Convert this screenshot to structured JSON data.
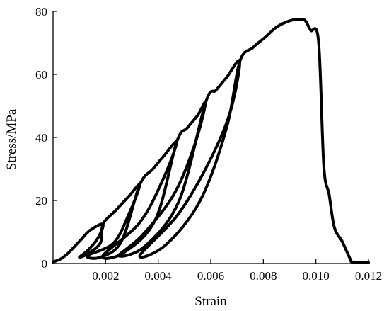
{
  "chart_data": {
    "type": "line",
    "title": "",
    "xlabel": "Strain",
    "ylabel": "Stress/MPa",
    "xlim": [
      0,
      0.012
    ],
    "ylim": [
      0,
      80
    ],
    "x_ticks": [
      0.002,
      0.004,
      0.006,
      0.008,
      0.01,
      0.012
    ],
    "x_tick_labels": [
      "0.002",
      "0.004",
      "0.006",
      "0.008",
      "0.010",
      "0.012"
    ],
    "y_ticks": [
      0,
      20,
      40,
      60,
      80
    ],
    "y_tick_labels": [
      "0",
      "20",
      "40",
      "60",
      "80"
    ],
    "grid": false,
    "legend": "none",
    "series": [
      {
        "values": [
          [
            0,
            0.5
          ],
          [
            0.0003,
            1.5
          ],
          [
            0.0006,
            3.5
          ],
          [
            0.001,
            7
          ],
          [
            0.0014,
            10.5
          ],
          [
            0.0019,
            12.5
          ],
          [
            0.0017,
            8
          ],
          [
            0.0013,
            4
          ],
          [
            0.001,
            2
          ],
          [
            0.0013,
            3
          ],
          [
            0.0018,
            6.5
          ],
          [
            0.0019,
            12.5
          ],
          [
            0.0024,
            17
          ],
          [
            0.0029,
            21.5
          ],
          [
            0.0033,
            25
          ],
          [
            0.0029,
            16
          ],
          [
            0.0023,
            6.5
          ],
          [
            0.0013,
            2.5
          ],
          [
            0.0018,
            2
          ],
          [
            0.0026,
            7
          ],
          [
            0.0033,
            25
          ],
          [
            0.0038,
            30
          ],
          [
            0.0042,
            34
          ],
          [
            0.0047,
            38.5
          ],
          [
            0.0042,
            27
          ],
          [
            0.0033,
            13
          ],
          [
            0.0019,
            2.5
          ],
          [
            0.0027,
            3.5
          ],
          [
            0.0039,
            14
          ],
          [
            0.0047,
            38.5
          ],
          [
            0.0051,
            43
          ],
          [
            0.0055,
            47
          ],
          [
            0.0058,
            51
          ],
          [
            0.0054,
            38
          ],
          [
            0.0046,
            22
          ],
          [
            0.0034,
            9
          ],
          [
            0.0025,
            2.5
          ],
          [
            0.0035,
            5.5
          ],
          [
            0.0048,
            20
          ],
          [
            0.0058,
            51
          ],
          [
            0.0062,
            55
          ],
          [
            0.0066,
            59
          ],
          [
            0.0071,
            64
          ],
          [
            0.0067,
            47
          ],
          [
            0.0058,
            30
          ],
          [
            0.0047,
            15
          ],
          [
            0.0033,
            2.5
          ],
          [
            0.0043,
            6
          ],
          [
            0.0056,
            20
          ],
          [
            0.0066,
            43
          ],
          [
            0.0071,
            64
          ],
          [
            0.0076,
            68.5
          ],
          [
            0.0081,
            72
          ],
          [
            0.0085,
            75
          ],
          [
            0.009,
            77
          ],
          [
            0.0094,
            77.5
          ],
          [
            0.0096,
            77
          ],
          [
            0.0098,
            74
          ],
          [
            0.0101,
            70.5
          ],
          [
            0.0103,
            31
          ],
          [
            0.0105,
            22
          ],
          [
            0.0107,
            11.5
          ],
          [
            0.011,
            7
          ],
          [
            0.0113,
            1.5
          ],
          [
            0.0114,
            0.5
          ],
          [
            0.012,
            0.3
          ]
        ]
      }
    ]
  }
}
